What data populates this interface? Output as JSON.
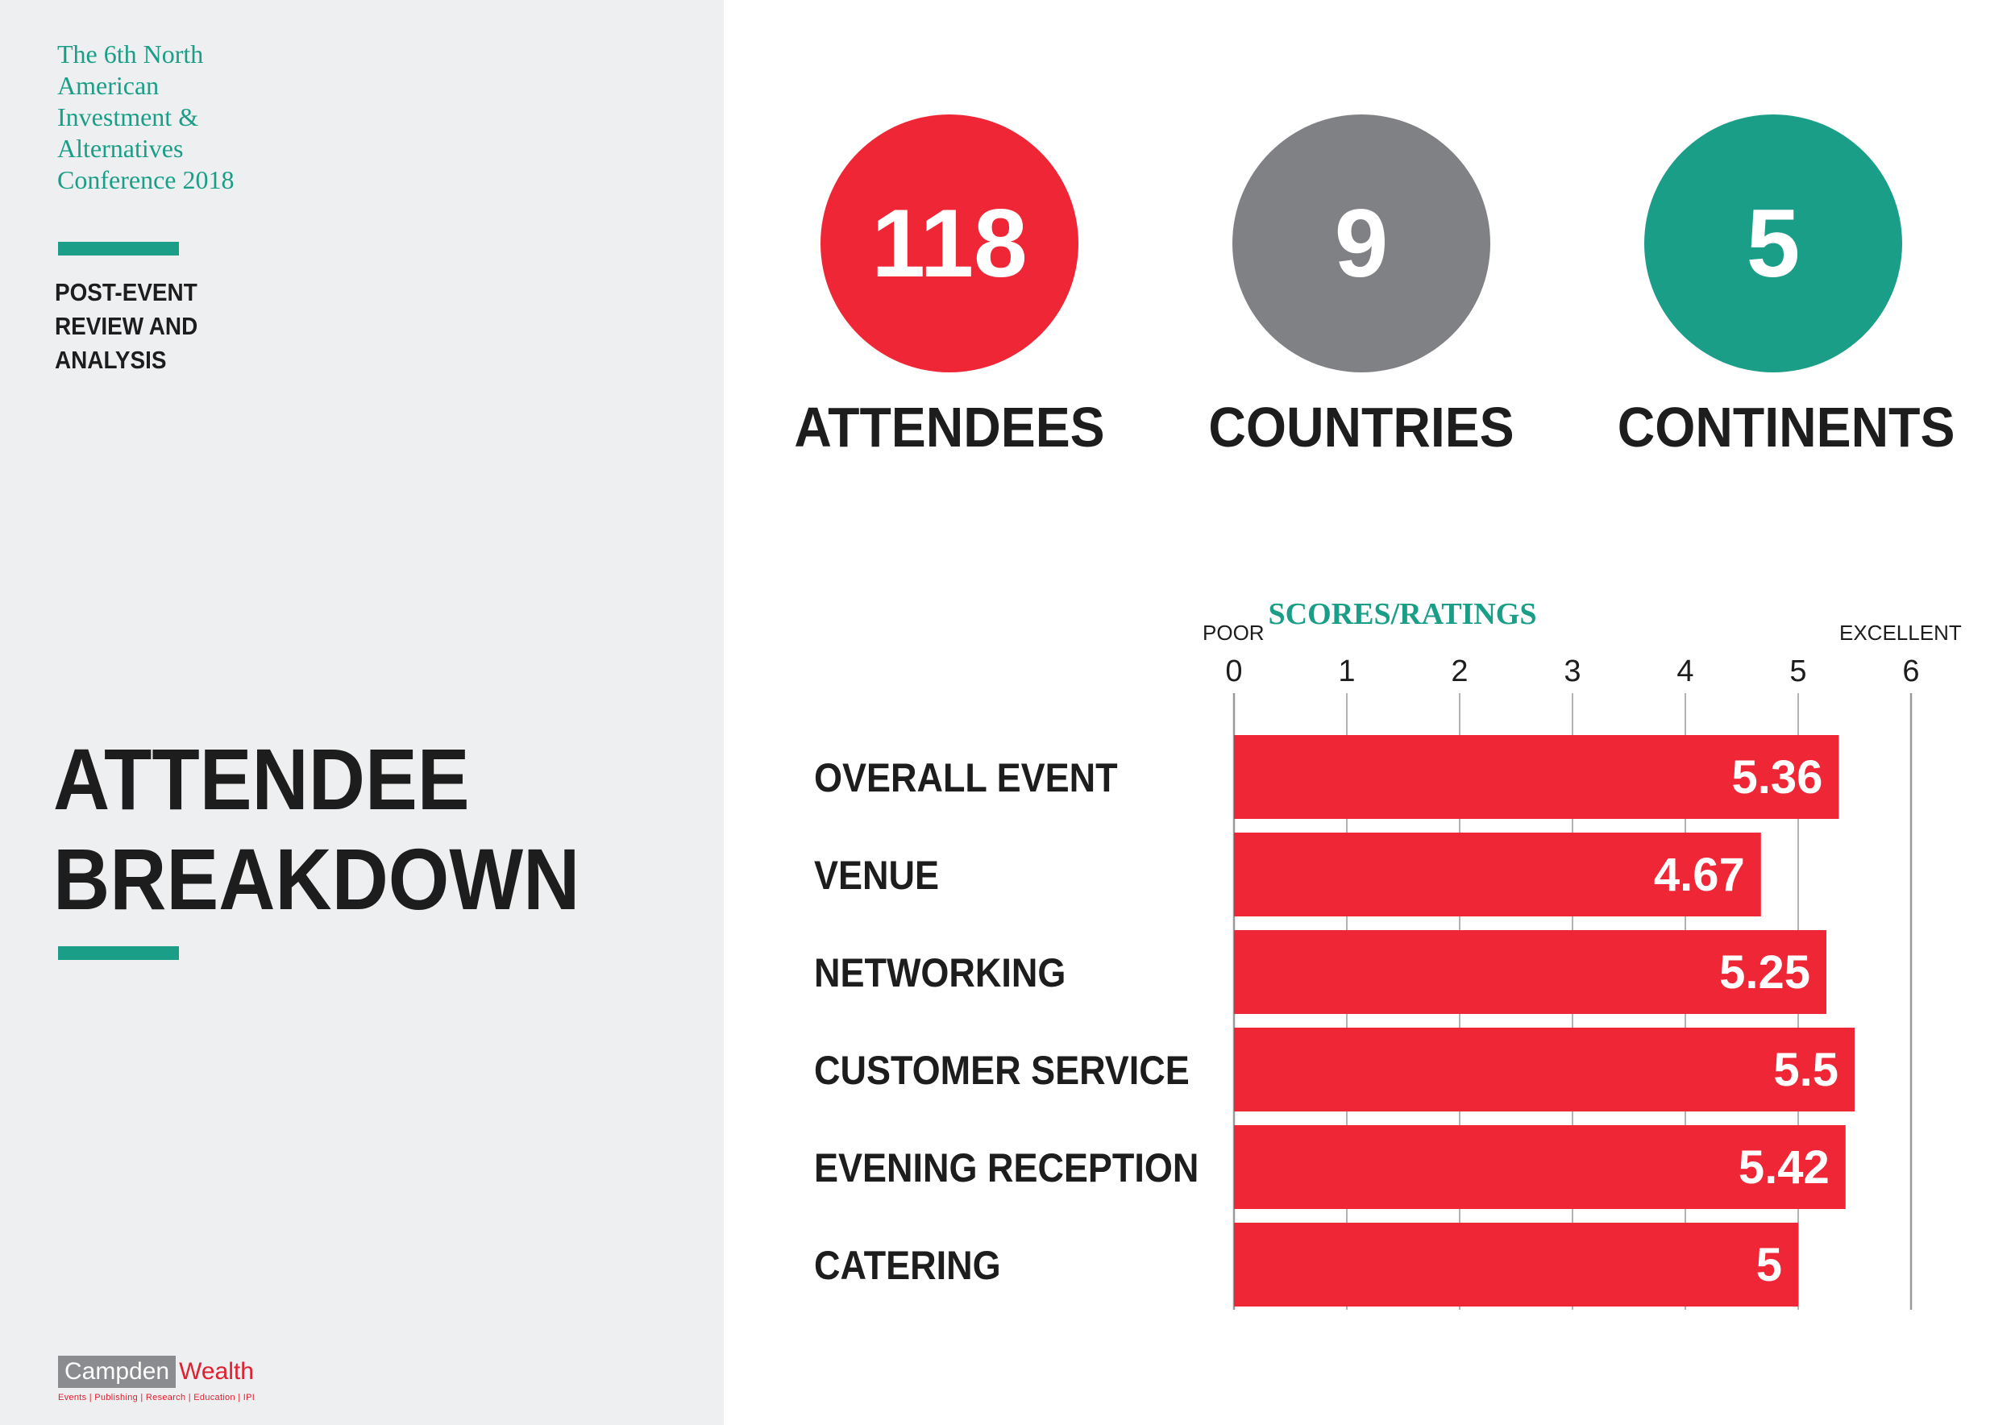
{
  "sidebar": {
    "conference_title": "The 6th North American Investment & Alternatives Conference 2018",
    "subtitle": "POST-EVENT REVIEW AND ANALYSIS",
    "heading": "ATTENDEE BREAKDOWN",
    "logo": {
      "left": "Campden",
      "right": "Wealth",
      "tagline": "Events | Publishing | Research | Education | IPI"
    }
  },
  "stats": [
    {
      "value": "118",
      "label": "ATTENDEES",
      "color": "#ee2636"
    },
    {
      "value": "9",
      "label": "COUNTRIES",
      "color": "#808184"
    },
    {
      "value": "5",
      "label": "CONTINENTS",
      "color": "#1a9e87"
    }
  ],
  "colors": {
    "accent": "#1a9e87",
    "bar": "#ee2636",
    "text": "#1d1d1d",
    "sidebar_bg": "#eeeff1"
  },
  "chart_data": {
    "type": "bar",
    "orientation": "horizontal",
    "title": "SCORES/RATINGS",
    "low_label": "POOR",
    "high_label": "EXCELLENT",
    "xlim": [
      0,
      6
    ],
    "ticks": [
      "0",
      "1",
      "2",
      "3",
      "4",
      "5",
      "6"
    ],
    "categories": [
      "OVERALL EVENT",
      "VENUE",
      "NETWORKING",
      "CUSTOMER SERVICE",
      "EVENING RECEPTION",
      "CATERING"
    ],
    "values": [
      5.36,
      4.67,
      5.25,
      5.5,
      5.42,
      5
    ],
    "value_labels": [
      "5.36",
      "4.67",
      "5.25",
      "5.5",
      "5.42",
      "5"
    ],
    "grid": true
  }
}
